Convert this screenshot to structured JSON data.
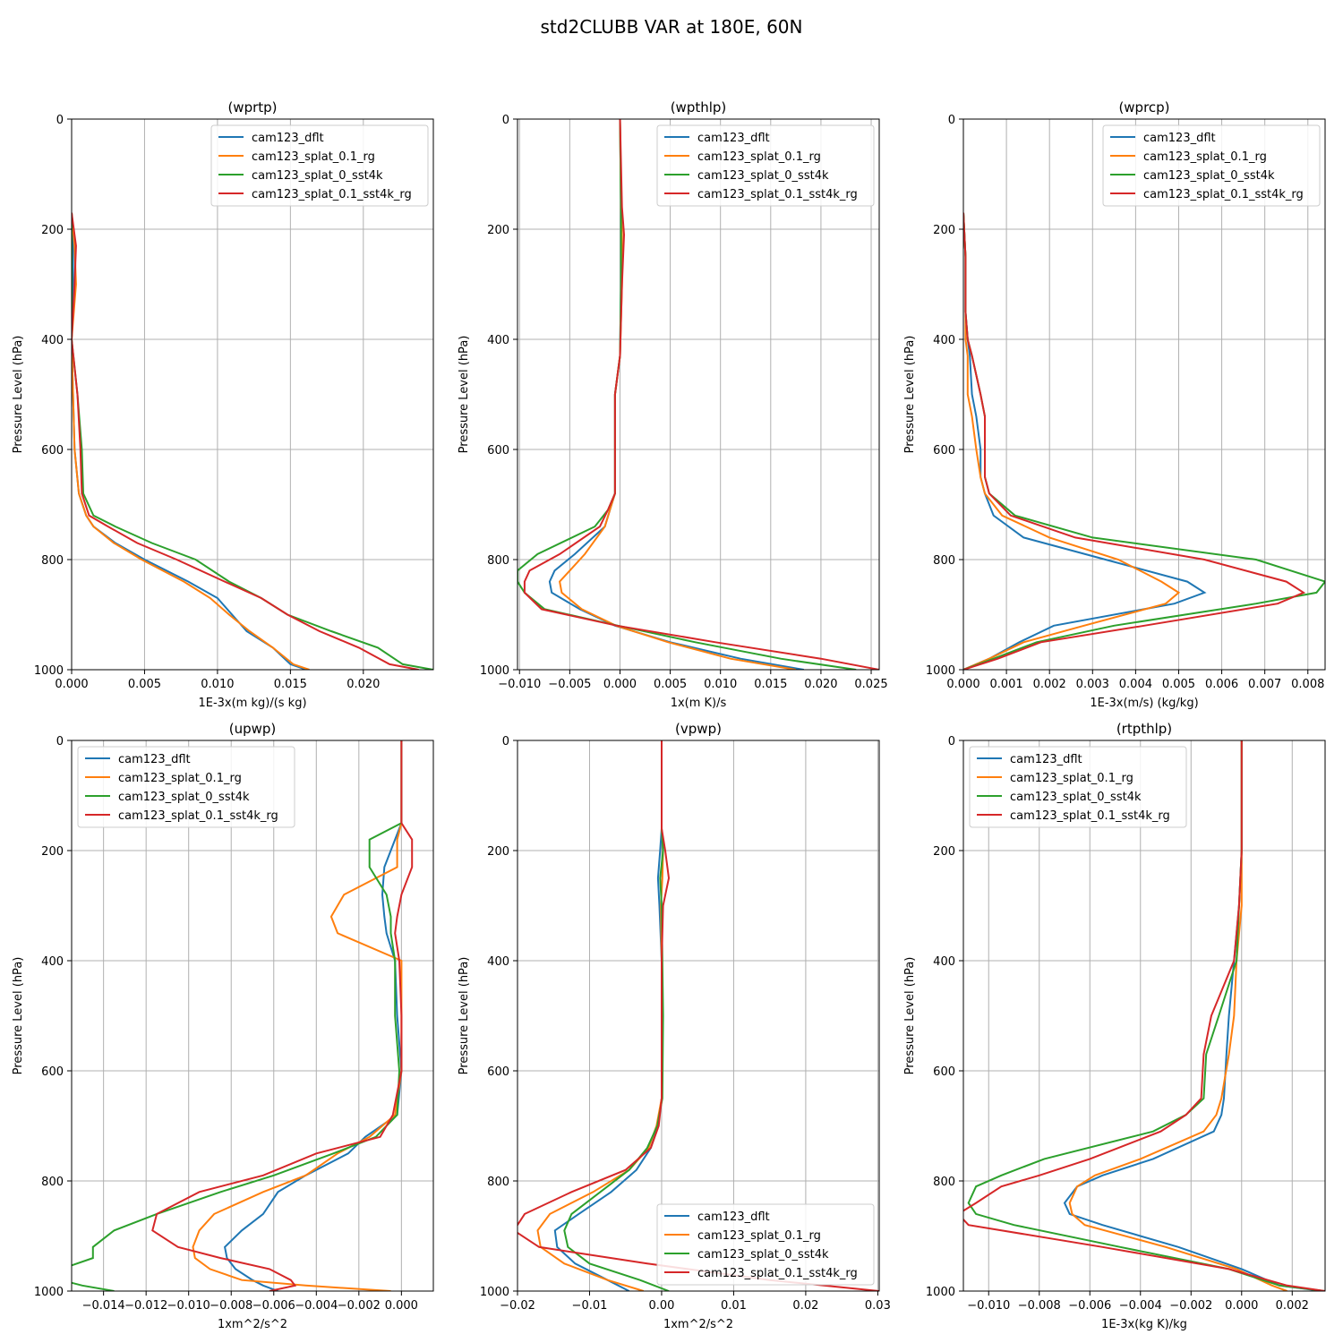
{
  "figure_title": "std2CLUBB VAR at 180E, 60N",
  "colors": {
    "cam123_dflt": "#1f77b4",
    "cam123_splat_0.1_rg": "#ff7f0e",
    "cam123_splat_0_sst4k": "#2ca02c",
    "cam123_splat_0.1_sst4k_rg": "#d62728",
    "grid": "#b0b0b0"
  },
  "chart_data": [
    {
      "type": "line",
      "title": "(wprtp)",
      "xlabel": "1E-3x(m kg)/(s kg)",
      "ylabel": "Pressure Level (hPa)",
      "xlim": [
        0.0,
        0.0248
      ],
      "ylim": [
        1000,
        0
      ],
      "xticks": [
        0.0,
        0.005,
        0.01,
        0.015,
        0.02
      ],
      "xtick_labels": [
        "0.000",
        "0.005",
        "0.010",
        "0.015",
        "0.020"
      ],
      "yticks": [
        0,
        200,
        400,
        600,
        800,
        1000
      ],
      "ytick_labels": [
        "0",
        "200",
        "400",
        "600",
        "800",
        "1000"
      ],
      "legend_loc": "top-right",
      "y": [
        170,
        230,
        300,
        400,
        500,
        600,
        680,
        720,
        740,
        770,
        800,
        840,
        870,
        900,
        930,
        960,
        990,
        1000
      ],
      "series": [
        {
          "name": "cam123_dflt",
          "values": [
            0,
            0.0001,
            0.0001,
            0,
            0.0001,
            0.0002,
            0.0005,
            0.001,
            0.0015,
            0.003,
            0.005,
            0.008,
            0.01,
            0.011,
            0.012,
            0.0138,
            0.015,
            0.0161
          ]
        },
        {
          "name": "cam123_splat_0.1_rg",
          "values": [
            0,
            0.0002,
            0.0003,
            0,
            0.0001,
            0.0002,
            0.0005,
            0.001,
            0.0015,
            0.0029,
            0.0048,
            0.0077,
            0.0095,
            0.0108,
            0.0122,
            0.0138,
            0.0152,
            0.0163
          ]
        },
        {
          "name": "cam123_splat_0_sst4k",
          "values": [
            0,
            0,
            0,
            0,
            0.0004,
            0.0007,
            0.0008,
            0.0015,
            0.003,
            0.0055,
            0.0085,
            0.0108,
            0.013,
            0.0148,
            0.0178,
            0.021,
            0.0227,
            0.0248
          ]
        },
        {
          "name": "cam123_splat_0.1_sst4k_rg",
          "values": [
            0,
            0.0003,
            0.0002,
            0,
            0.0004,
            0.0006,
            0.0007,
            0.0012,
            0.0025,
            0.0045,
            0.0072,
            0.0105,
            0.013,
            0.0148,
            0.017,
            0.0197,
            0.0218,
            0.0238
          ]
        }
      ]
    },
    {
      "type": "line",
      "title": "(wpthlp)",
      "xlabel": "1x(m K)/s",
      "ylabel": "Pressure Level (hPa)",
      "xlim": [
        -0.0102,
        0.0258
      ],
      "ylim": [
        1000,
        0
      ],
      "xticks": [
        -0.01,
        -0.005,
        0.0,
        0.005,
        0.01,
        0.015,
        0.02,
        0.025
      ],
      "xtick_labels": [
        "−0.010",
        "−0.005",
        "0.000",
        "0.005",
        "0.010",
        "0.015",
        "0.020",
        "0.025"
      ],
      "yticks": [
        0,
        200,
        400,
        600,
        800,
        1000
      ],
      "ytick_labels": [
        "0",
        "200",
        "400",
        "600",
        "800",
        "1000"
      ],
      "legend_loc": "top-right",
      "y": [
        0,
        160,
        210,
        300,
        430,
        500,
        600,
        680,
        710,
        740,
        790,
        820,
        840,
        860,
        890,
        920,
        950,
        980,
        1000
      ],
      "series": [
        {
          "name": "cam123_dflt",
          "values": [
            0,
            0.0001,
            0.0001,
            0.0001,
            0,
            -0.0005,
            -0.0005,
            -0.0005,
            -0.001,
            -0.0015,
            -0.0045,
            -0.0065,
            -0.007,
            -0.0068,
            -0.004,
            -0.0005,
            0.005,
            0.012,
            0.0183
          ]
        },
        {
          "name": "cam123_splat_0.1_rg",
          "values": [
            0,
            0.0001,
            0.0002,
            0.0002,
            0,
            -0.0005,
            -0.0005,
            -0.0005,
            -0.001,
            -0.0015,
            -0.0035,
            -0.005,
            -0.006,
            -0.0058,
            -0.0038,
            -0.0004,
            0.0048,
            0.011,
            0.0175
          ]
        },
        {
          "name": "cam123_splat_0_sst4k",
          "values": [
            0,
            0.0001,
            0.0001,
            0.0001,
            0,
            -0.0005,
            -0.0005,
            -0.0005,
            -0.0012,
            -0.0025,
            -0.0082,
            -0.0102,
            -0.0102,
            -0.0095,
            -0.0075,
            -0.0002,
            0.0075,
            0.016,
            0.0235
          ]
        },
        {
          "name": "cam123_splat_0.1_sst4k_rg",
          "values": [
            0,
            0.0002,
            0.0004,
            0.0002,
            0,
            -0.0005,
            -0.0005,
            -0.0005,
            -0.0012,
            -0.002,
            -0.006,
            -0.009,
            -0.0095,
            -0.0095,
            -0.0078,
            -0.0003,
            0.0095,
            0.02,
            0.0258
          ]
        }
      ]
    },
    {
      "type": "line",
      "title": "(wprcp)",
      "xlabel": "1E-3x(m/s) (kg/kg)",
      "ylabel": "Pressure Level (hPa)",
      "xlim": [
        0.0,
        0.0084
      ],
      "ylim": [
        1000,
        0
      ],
      "xticks": [
        0.0,
        0.001,
        0.002,
        0.003,
        0.004,
        0.005,
        0.006,
        0.007,
        0.008
      ],
      "xtick_labels": [
        "0.000",
        "0.001",
        "0.002",
        "0.003",
        "0.004",
        "0.005",
        "0.006",
        "0.007",
        "0.008"
      ],
      "yticks": [
        0,
        200,
        400,
        600,
        800,
        1000
      ],
      "ytick_labels": [
        "0",
        "200",
        "400",
        "600",
        "800",
        "1000"
      ],
      "legend_loc": "top-right",
      "y": [
        170,
        250,
        350,
        400,
        430,
        500,
        540,
        600,
        650,
        680,
        720,
        760,
        800,
        840,
        860,
        880,
        920,
        950,
        980,
        1000
      ],
      "series": [
        {
          "name": "cam123_dflt",
          "values": [
            0,
            5e-05,
            5e-05,
            0.0001,
            0.00015,
            0.0002,
            0.0003,
            0.0004,
            0.0004,
            0.0005,
            0.0007,
            0.0014,
            0.0033,
            0.0052,
            0.0056,
            0.0049,
            0.0021,
            0.0013,
            0.0006,
            0
          ]
        },
        {
          "name": "cam123_splat_0.1_rg",
          "values": [
            0,
            5e-05,
            5e-05,
            5e-05,
            0.0001,
            0.0001,
            0.0002,
            0.0003,
            0.0004,
            0.0005,
            0.0009,
            0.002,
            0.0036,
            0.0046,
            0.005,
            0.0047,
            0.0028,
            0.0014,
            0.0006,
            0
          ]
        },
        {
          "name": "cam123_splat_0_sst4k",
          "values": [
            0,
            5e-05,
            5e-05,
            0.0001,
            0.0002,
            0.0004,
            0.0005,
            0.0005,
            0.0005,
            0.0006,
            0.0012,
            0.003,
            0.0068,
            0.0084,
            0.0082,
            0.0068,
            0.0035,
            0.0017,
            0.0007,
            0
          ]
        },
        {
          "name": "cam123_splat_0.1_sst4k_rg",
          "values": [
            0,
            5e-05,
            5e-05,
            0.0001,
            0.0002,
            0.0004,
            0.0005,
            0.0005,
            0.0005,
            0.0006,
            0.0011,
            0.0026,
            0.0056,
            0.0075,
            0.0079,
            0.0073,
            0.0042,
            0.0018,
            0.0008,
            0
          ]
        }
      ]
    },
    {
      "type": "line",
      "title": "(upwp)",
      "xlabel": "1xm^2/s^2",
      "ylabel": "Pressure Level (hPa)",
      "xlim": [
        -0.0155,
        0.0015
      ],
      "ylim": [
        1000,
        0
      ],
      "xticks": [
        -0.014,
        -0.012,
        -0.01,
        -0.008,
        -0.006,
        -0.004,
        -0.002,
        0.0
      ],
      "xtick_labels": [
        "−0.014",
        "−0.012",
        "−0.010",
        "−0.008",
        "−0.006",
        "−0.004",
        "−0.002",
        "0.000"
      ],
      "yticks": [
        0,
        200,
        400,
        600,
        800,
        1000
      ],
      "ytick_labels": [
        "0",
        "200",
        "400",
        "600",
        "800",
        "1000"
      ],
      "legend_loc": "top-left",
      "y": [
        0,
        150,
        180,
        230,
        280,
        320,
        350,
        400,
        500,
        600,
        680,
        720,
        750,
        790,
        820,
        860,
        890,
        920,
        940,
        960,
        980,
        990,
        1000
      ],
      "series": [
        {
          "name": "cam123_dflt",
          "values": [
            0,
            0,
            -0.0003,
            -0.0008,
            -0.0009,
            -0.0008,
            -0.0007,
            -0.0003,
            -0.0002,
            0,
            -0.0002,
            -0.0017,
            -0.0025,
            -0.0045,
            -0.0058,
            -0.0065,
            -0.0075,
            -0.0083,
            -0.0082,
            -0.0078,
            -0.007,
            -0.0065,
            -0.0058
          ]
        },
        {
          "name": "cam123_splat_0.1_rg",
          "values": [
            0,
            0,
            -0.0002,
            -0.0002,
            -0.0027,
            -0.0033,
            -0.003,
            0,
            0,
            0,
            -0.0003,
            -0.0015,
            -0.003,
            -0.0045,
            -0.0065,
            -0.0088,
            -0.0095,
            -0.0098,
            -0.0097,
            -0.009,
            -0.0075,
            -0.0045,
            -0.0005
          ]
        },
        {
          "name": "cam123_splat_0_sst4k",
          "values": [
            0,
            0,
            -0.0015,
            -0.0015,
            -0.0007,
            -0.0005,
            -0.0005,
            -0.0003,
            -0.0003,
            -0.0001,
            -0.0002,
            -0.0012,
            -0.0032,
            -0.006,
            -0.0085,
            -0.0115,
            -0.0135,
            -0.0145,
            -0.0145,
            -0.016,
            -0.016,
            -0.015,
            -0.0135
          ]
        },
        {
          "name": "cam123_splat_0.1_sst4k_rg",
          "values": [
            0,
            0,
            0.0005,
            0.0005,
            0,
            -0.0002,
            -0.0003,
            -0.0001,
            0,
            0,
            -0.0004,
            -0.001,
            -0.004,
            -0.0065,
            -0.0095,
            -0.0115,
            -0.0117,
            -0.0105,
            -0.0085,
            -0.0062,
            -0.0052,
            -0.005,
            -0.0062
          ]
        }
      ]
    },
    {
      "type": "line",
      "title": "(vpwp)",
      "xlabel": "1xm^2/s^2",
      "ylabel": "Pressure Level (hPa)",
      "xlim": [
        -0.02,
        0.0302
      ],
      "ylim": [
        1000,
        0
      ],
      "xticks": [
        -0.02,
        -0.01,
        0.0,
        0.01,
        0.02,
        0.03
      ],
      "xtick_labels": [
        "−0.02",
        "−0.01",
        "0.00",
        "0.01",
        "0.02",
        "0.03"
      ],
      "yticks": [
        0,
        200,
        400,
        600,
        800,
        1000
      ],
      "ytick_labels": [
        "0",
        "200",
        "400",
        "600",
        "800",
        "1000"
      ],
      "legend_loc": "bottom-right",
      "y": [
        0,
        160,
        200,
        250,
        300,
        400,
        500,
        650,
        700,
        740,
        780,
        820,
        860,
        890,
        920,
        950,
        980,
        1000
      ],
      "series": [
        {
          "name": "cam123_dflt",
          "values": [
            0,
            0,
            -0.0002,
            -0.0005,
            -0.0003,
            0,
            0,
            0,
            -0.0005,
            -0.0015,
            -0.0035,
            -0.007,
            -0.0115,
            -0.0148,
            -0.0145,
            -0.012,
            -0.0075,
            -0.0045
          ]
        },
        {
          "name": "cam123_splat_0.1_rg",
          "values": [
            0,
            0,
            0.0002,
            0.0001,
            -0.0001,
            0,
            0,
            0,
            -0.0007,
            -0.0018,
            -0.0045,
            -0.0095,
            -0.0155,
            -0.0172,
            -0.0168,
            -0.0135,
            -0.0075,
            -0.0025
          ]
        },
        {
          "name": "cam123_splat_0_sst4k",
          "values": [
            0,
            0,
            0.0002,
            -0.0002,
            0,
            0.0001,
            0.0002,
            0.0001,
            -0.0006,
            -0.002,
            -0.0045,
            -0.0085,
            -0.0125,
            -0.0135,
            -0.013,
            -0.01,
            -0.003,
            0.001
          ]
        },
        {
          "name": "cam123_splat_0.1_sst4k_rg",
          "values": [
            0,
            0,
            0.0005,
            0.001,
            0.0002,
            0,
            0,
            0,
            -0.0004,
            -0.0015,
            -0.005,
            -0.0125,
            -0.019,
            -0.0205,
            -0.017,
            -0.002,
            0.015,
            0.0302
          ]
        }
      ]
    },
    {
      "type": "line",
      "title": "(rtpthlp)",
      "xlabel": "1E-3x(kg K)/kg",
      "ylabel": "Pressure Level (hPa)",
      "xlim": [
        -0.011,
        0.0033
      ],
      "ylim": [
        1000,
        0
      ],
      "xticks": [
        -0.01,
        -0.008,
        -0.006,
        -0.004,
        -0.002,
        0.0,
        0.002
      ],
      "xtick_labels": [
        "−0.010",
        "−0.008",
        "−0.006",
        "−0.004",
        "−0.002",
        "0.000",
        "0.002"
      ],
      "yticks": [
        0,
        200,
        400,
        600,
        800,
        1000
      ],
      "ytick_labels": [
        "0",
        "200",
        "400",
        "600",
        "800",
        "1000"
      ],
      "legend_loc": "top-left",
      "y": [
        0,
        200,
        300,
        400,
        500,
        570,
        650,
        680,
        710,
        760,
        790,
        810,
        840,
        860,
        880,
        920,
        960,
        990,
        1000
      ],
      "series": [
        {
          "name": "cam123_dflt",
          "values": [
            0,
            0,
            -0.0001,
            -0.0003,
            -0.0005,
            -0.0006,
            -0.0007,
            -0.0008,
            -0.0011,
            -0.0035,
            -0.0055,
            -0.0065,
            -0.007,
            -0.0068,
            -0.0055,
            -0.0025,
            0,
            0.0015,
            0.0032
          ]
        },
        {
          "name": "cam123_splat_0.1_rg",
          "values": [
            0,
            0,
            0,
            -0.0002,
            -0.0003,
            -0.0005,
            -0.0008,
            -0.001,
            -0.0015,
            -0.004,
            -0.0058,
            -0.0065,
            -0.0068,
            -0.0067,
            -0.0062,
            -0.003,
            -0.0002,
            0.0012,
            0.0018
          ]
        },
        {
          "name": "cam123_splat_0_sst4k",
          "values": [
            0,
            0,
            -0.0001,
            -0.0002,
            -0.0009,
            -0.0014,
            -0.0015,
            -0.0022,
            -0.0035,
            -0.0078,
            -0.0095,
            -0.0105,
            -0.0108,
            -0.0105,
            -0.009,
            -0.0048,
            -0.0005,
            0.0015,
            0.0033
          ]
        },
        {
          "name": "cam123_splat_0.1_sst4k_rg",
          "values": [
            0,
            0,
            -0.0001,
            -0.0003,
            -0.0012,
            -0.0015,
            -0.0016,
            -0.0022,
            -0.0032,
            -0.006,
            -0.008,
            -0.0095,
            -0.0105,
            -0.0112,
            -0.0108,
            -0.0055,
            -0.0005,
            0.0018,
            0.0033
          ]
        }
      ]
    }
  ]
}
